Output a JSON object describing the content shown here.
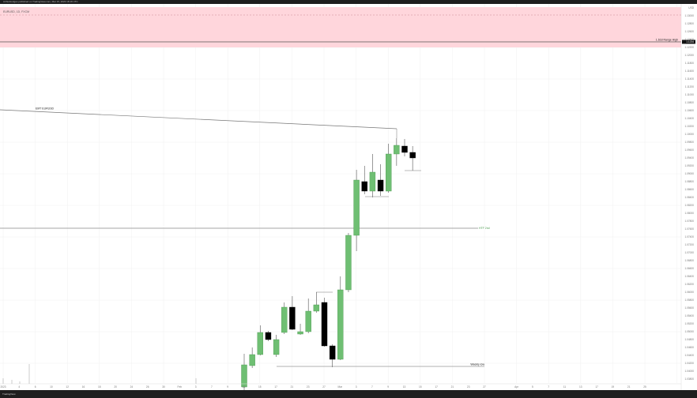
{
  "header": {
    "published_line": "ArthurHodges published on TradingView.com, Mar 15, 2023 18:16 UTC",
    "symbol_line": "EURUSD, 1D, FXCM"
  },
  "footer": {
    "brand": "TradingView"
  },
  "colors": {
    "up": "#6fbf73",
    "down": "#000000",
    "zone": "#ffd6dc",
    "grid": "#f0f0f0",
    "level": "#888888"
  },
  "chart_data": {
    "type": "candlestick",
    "currency": "USD",
    "price_range": [
      1.036,
      1.133
    ],
    "price_ticks": [
      1.13,
      1.128,
      1.126,
      1.124,
      1.122,
      1.12,
      1.118,
      1.116,
      1.114,
      1.112,
      1.11,
      1.108,
      1.106,
      1.104,
      1.102,
      1.1,
      1.098,
      1.096,
      1.094,
      1.092,
      1.09,
      1.088,
      1.086,
      1.084,
      1.082,
      1.08,
      1.078,
      1.076,
      1.074,
      1.072,
      1.07,
      1.068,
      1.066,
      1.064,
      1.062,
      1.06,
      1.058,
      1.056,
      1.054,
      1.052,
      1.05,
      1.048,
      1.046,
      1.044,
      1.042,
      1.04,
      1.038
    ],
    "current_price_label": "1.1234",
    "x_labels": [
      "2023",
      "4",
      "6",
      "10",
      "12",
      "16",
      "18",
      "20",
      "24",
      "26",
      "30",
      "Feb",
      "3",
      "7",
      "9",
      "13",
      "15",
      "17",
      "21",
      "23",
      "27",
      "Mar",
      "3",
      "7",
      "9",
      "13",
      "15",
      "17",
      "21",
      "23",
      "27",
      "",
      "Apr",
      "5",
      "7",
      "11",
      "13",
      "17",
      "19",
      "21",
      "25"
    ],
    "candles": [
      {
        "o": 1.036,
        "h": 1.0444,
        "l": 1.035,
        "c": 1.0416
      },
      {
        "o": 1.0414,
        "h": 1.046,
        "l": 1.0408,
        "c": 1.0442
      },
      {
        "o": 1.0442,
        "h": 1.0516,
        "l": 1.044,
        "c": 1.0498
      },
      {
        "o": 1.0498,
        "h": 1.0502,
        "l": 1.0476,
        "c": 1.048
      },
      {
        "o": 1.0442,
        "h": 1.0492,
        "l": 1.0436,
        "c": 1.048
      },
      {
        "o": 1.0498,
        "h": 1.0574,
        "l": 1.0494,
        "c": 1.0562
      },
      {
        "o": 1.0562,
        "h": 1.059,
        "l": 1.0504,
        "c": 1.0506
      },
      {
        "o": 1.0494,
        "h": 1.052,
        "l": 1.0492,
        "c": 1.05
      },
      {
        "o": 1.05,
        "h": 1.0584,
        "l": 1.0496,
        "c": 1.0552
      },
      {
        "o": 1.0552,
        "h": 1.06,
        "l": 1.0548,
        "c": 1.0568
      },
      {
        "o": 1.0574,
        "h": 1.0586,
        "l": 1.0462,
        "c": 1.0464
      },
      {
        "o": 1.0464,
        "h": 1.0468,
        "l": 1.041,
        "c": 1.043
      },
      {
        "o": 1.043,
        "h": 1.064,
        "l": 1.0428,
        "c": 1.0606
      },
      {
        "o": 1.0606,
        "h": 1.075,
        "l": 1.06,
        "c": 1.0744
      },
      {
        "o": 1.0744,
        "h": 1.091,
        "l": 1.0704,
        "c": 1.0884
      },
      {
        "o": 1.088,
        "h": 1.092,
        "l": 1.0848,
        "c": 1.0856
      },
      {
        "o": 1.0856,
        "h": 1.095,
        "l": 1.084,
        "c": 1.0904
      },
      {
        "o": 1.0884,
        "h": 1.0924,
        "l": 1.0844,
        "c": 1.0856
      },
      {
        "o": 1.0856,
        "h": 1.0976,
        "l": 1.0852,
        "c": 1.095
      },
      {
        "o": 1.095,
        "h": 1.099,
        "l": 1.092,
        "c": 1.0972
      },
      {
        "o": 1.097,
        "h": 1.0988,
        "l": 1.0944,
        "c": 1.0954
      },
      {
        "o": 1.0954,
        "h": 1.097,
        "l": 1.0908,
        "c": 1.094
      }
    ],
    "zone": {
      "top": 1.1322,
      "bottom": 1.122,
      "dashed_level": 1.1302
    },
    "levels": [
      {
        "name": "range-high",
        "label": "1.618 Range High",
        "price": 1.1234
      },
      {
        "name": "htf-level",
        "label": "HTF 2nd",
        "price": 1.0762
      },
      {
        "name": "weekly-low",
        "label": "Weekly low",
        "price": 1.0412
      }
    ],
    "trendline": {
      "label": "EMT EURUSD",
      "start_price": 1.1062,
      "end_price": 1.1014
    }
  }
}
